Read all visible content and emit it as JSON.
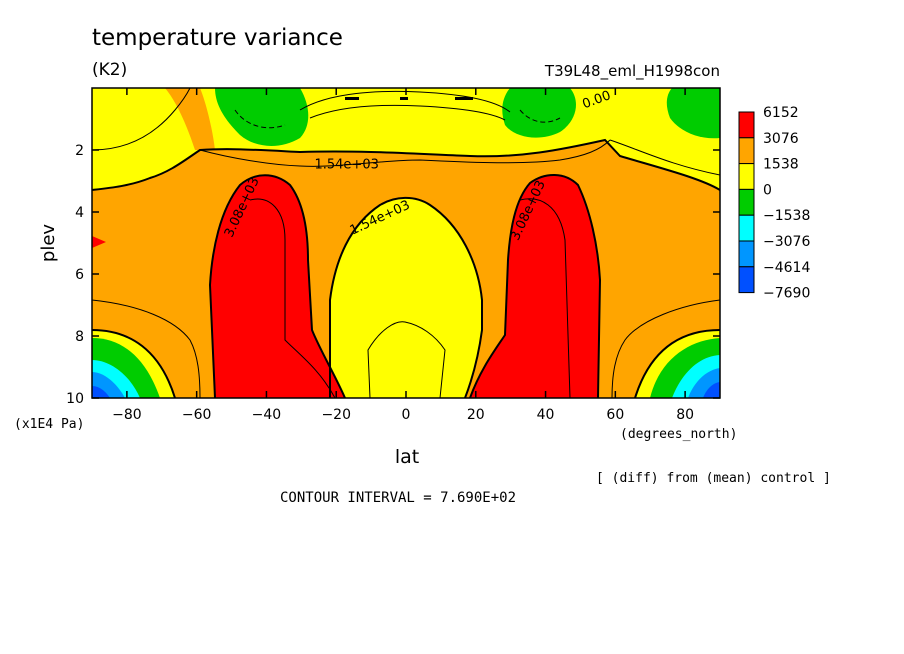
{
  "chart_data": {
    "type": "heatmap",
    "title": "temperature variance",
    "units": "(K2)",
    "experiment": "T39L48_eml_H1998con",
    "xlabel": "lat",
    "x_units": "(degrees_north)",
    "ylabel": "plev",
    "y_units": "(x1E4 Pa)",
    "xlim": [
      -90,
      90
    ],
    "ylim": [
      0,
      10
    ],
    "y_reversed": true,
    "x_ticks": [
      -80,
      -60,
      -40,
      -20,
      0,
      20,
      40,
      60,
      80
    ],
    "y_ticks": [
      2,
      4,
      6,
      8,
      10
    ],
    "contour_interval_text": "CONTOUR INTERVAL = 7.690E+02",
    "note": "[ (diff) from (mean) control ]",
    "legend": {
      "position": "right",
      "levels": [
        "6152",
        "3076",
        "1538",
        "0",
        "-1538",
        "-3076",
        "-4614",
        "-7690"
      ],
      "colors": [
        "#ff0000",
        "#ffa500",
        "#ffff00",
        "#00cc00",
        "#00ffff",
        "#0096ff",
        "#0050ff"
      ]
    },
    "contour_labels": [
      {
        "text": "0.00",
        "lat": 55,
        "plev": 0.5
      },
      {
        "text": "1.54e+03",
        "lat": -17,
        "plev": 2.6
      },
      {
        "text": "1.54e+03",
        "lat": -7,
        "plev": 4.3
      },
      {
        "text": "3.08e+03",
        "lat": -46,
        "plev": 3.9
      },
      {
        "text": "3.08e+03",
        "lat": 36,
        "plev": 4.0
      }
    ],
    "colors": {
      "red": "#ff0000",
      "orange": "#ffa500",
      "yellow": "#ffff00",
      "green": "#00cc00",
      "cyan": "#00ffff",
      "blue": "#0096ff",
      "dark_blue": "#0050ff"
    }
  }
}
